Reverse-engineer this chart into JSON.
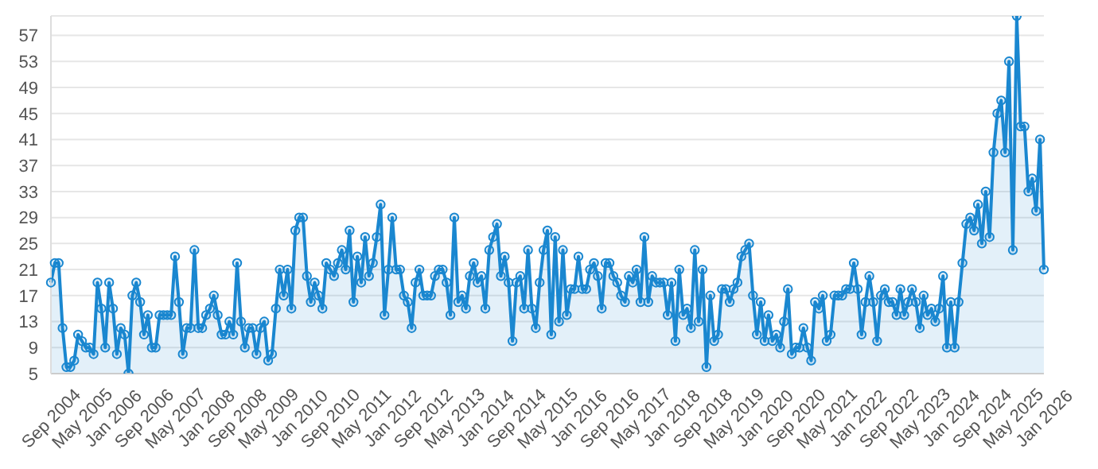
{
  "chart_data": {
    "type": "area",
    "categories": [
      "Sep 2004",
      null,
      null,
      null,
      null,
      null,
      null,
      null,
      "May 2005",
      null,
      null,
      null,
      null,
      null,
      null,
      null,
      "Jan 2006",
      null,
      null,
      null,
      null,
      null,
      null,
      null,
      "Sep 2006",
      null,
      null,
      null,
      null,
      null,
      null,
      null,
      "May 2007",
      null,
      null,
      null,
      null,
      null,
      null,
      null,
      "Jan 2008",
      null,
      null,
      null,
      null,
      null,
      null,
      null,
      "Sep 2008",
      null,
      null,
      null,
      null,
      null,
      null,
      null,
      "May 2009",
      null,
      null,
      null,
      null,
      null,
      null,
      null,
      "Jan 2010",
      null,
      null,
      null,
      null,
      null,
      null,
      null,
      "Sep 2010",
      null,
      null,
      null,
      null,
      null,
      null,
      null,
      "May 2011",
      null,
      null,
      null,
      null,
      null,
      null,
      null,
      "Jan 2012",
      null,
      null,
      null,
      null,
      null,
      null,
      null,
      "Sep 2012",
      null,
      null,
      null,
      null,
      null,
      null,
      null,
      "May 2013",
      null,
      null,
      null,
      null,
      null,
      null,
      null,
      "Jan 2014",
      null,
      null,
      null,
      null,
      null,
      null,
      null,
      "Sep 2014",
      null,
      null,
      null,
      null,
      null,
      null,
      null,
      "May 2015",
      null,
      null,
      null,
      null,
      null,
      null,
      null,
      "Jan 2016",
      null,
      null,
      null,
      null,
      null,
      null,
      null,
      "Sep 2016",
      null,
      null,
      null,
      null,
      null,
      null,
      null,
      "May 2017",
      null,
      null,
      null,
      null,
      null,
      null,
      null,
      "Jan 2018",
      null,
      null,
      null,
      null,
      null,
      null,
      null,
      "Sep 2018",
      null,
      null,
      null,
      null,
      null,
      null,
      null,
      "May 2019",
      null,
      null,
      null,
      null,
      null,
      null,
      null,
      "Jan 2020",
      null,
      null,
      null,
      null,
      null,
      null,
      null,
      "Sep 2020",
      null,
      null,
      null,
      null,
      null,
      null,
      null,
      "May 2021",
      null,
      null,
      null,
      null,
      null,
      null,
      null,
      "Jan 2022",
      null,
      null,
      null,
      null,
      null,
      null,
      null,
      "Sep 2022",
      null,
      null,
      null,
      null,
      null,
      null,
      null,
      "May 2023",
      null,
      null,
      null,
      null,
      null,
      null,
      null,
      "Jan 2024",
      null,
      null,
      null,
      null,
      null,
      null,
      null,
      "Sep 2024",
      null,
      null,
      null,
      null,
      null,
      null,
      null,
      "May 2025",
      null,
      null,
      null,
      null,
      null,
      null,
      null,
      "Jan 2026"
    ],
    "series": [
      {
        "color": "#1a87d0",
        "values": [
          19,
          22,
          22,
          12,
          6,
          6,
          7,
          11,
          10,
          9,
          9,
          8,
          19,
          15,
          9,
          19,
          15,
          8,
          12,
          11,
          5,
          17,
          19,
          16,
          11,
          14,
          9,
          9,
          14,
          14,
          14,
          14,
          23,
          16,
          8,
          12,
          12,
          24,
          12,
          12,
          14,
          15,
          17,
          14,
          11,
          11,
          13,
          11,
          22,
          13,
          9,
          12,
          12,
          8,
          12,
          13,
          7,
          8,
          15,
          21,
          17,
          21,
          15,
          27,
          29,
          29,
          20,
          16,
          19,
          17,
          15,
          22,
          21,
          20,
          22,
          24,
          21,
          27,
          16,
          23,
          19,
          26,
          20,
          22,
          26,
          31,
          14,
          21,
          29,
          21,
          21,
          17,
          16,
          12,
          19,
          21,
          17,
          17,
          17,
          20,
          21,
          21,
          19,
          14,
          29,
          16,
          17,
          15,
          20,
          22,
          19,
          20,
          15,
          24,
          26,
          28,
          20,
          23,
          19,
          10,
          19,
          20,
          15,
          24,
          15,
          12,
          19,
          24,
          27,
          11,
          26,
          13,
          24,
          14,
          18,
          18,
          23,
          18,
          18,
          21,
          22,
          20,
          15,
          22,
          22,
          20,
          19,
          17,
          16,
          20,
          19,
          21,
          16,
          26,
          16,
          20,
          19,
          19,
          19,
          14,
          19,
          10,
          21,
          14,
          15,
          12,
          24,
          13,
          21,
          6,
          17,
          10,
          11,
          18,
          18,
          16,
          18,
          19,
          23,
          24,
          25,
          17,
          11,
          16,
          10,
          14,
          10,
          11,
          9,
          13,
          18,
          8,
          9,
          9,
          12,
          9,
          7,
          16,
          15,
          17,
          10,
          11,
          17,
          17,
          17,
          18,
          18,
          22,
          18,
          11,
          16,
          20,
          16,
          10,
          17,
          18,
          16,
          16,
          14,
          18,
          14,
          16,
          18,
          16,
          12,
          17,
          14,
          15,
          13,
          15,
          20,
          9,
          16,
          9,
          16,
          22,
          28,
          29,
          27,
          31,
          25,
          33,
          26,
          39,
          45,
          47,
          39,
          53,
          24,
          60,
          43,
          43,
          33,
          35,
          30,
          41,
          21
        ]
      }
    ],
    "ylim": [
      5,
      60
    ],
    "yticks": [
      5,
      9,
      13,
      17,
      21,
      25,
      29,
      33,
      37,
      41,
      45,
      49,
      53,
      57
    ],
    "grid": "y",
    "marker": "circle",
    "line_style": "solid"
  }
}
